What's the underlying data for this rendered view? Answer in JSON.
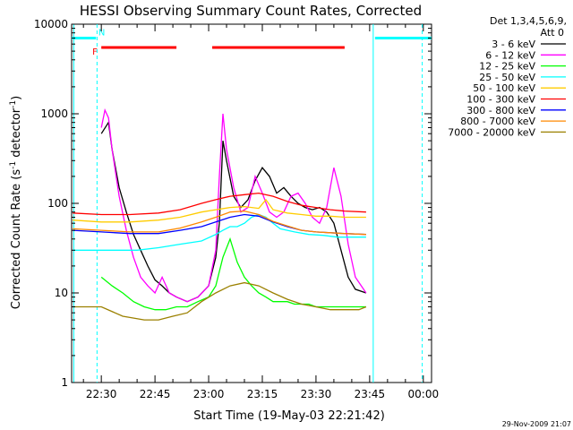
{
  "chart_data": {
    "type": "line",
    "title": "HESSI Observing Summary Count Rates, Corrected",
    "xlabel": "Start Time (19-May-03 22:21:42)",
    "ylabel_main": "Corrected Count Rate (s",
    "ylabel_sup1": "-1",
    "ylabel_mid": " detector",
    "ylabel_sup2": "-1",
    "ylabel_end": ")",
    "yscale": "log",
    "ylim": [
      1,
      10000
    ],
    "xlim_min": [
      21.7,
      122.3
    ],
    "x_ticks": [
      {
        "min": 30,
        "label": "22:30"
      },
      {
        "min": 45,
        "label": "22:45"
      },
      {
        "min": 60,
        "label": "23:00"
      },
      {
        "min": 75,
        "label": "23:15"
      },
      {
        "min": 90,
        "label": "23:30"
      },
      {
        "min": 105,
        "label": "23:45"
      },
      {
        "min": 120,
        "label": "00:00"
      }
    ],
    "y_ticks": [
      {
        "v": 1,
        "label": "1"
      },
      {
        "v": 10,
        "label": "10"
      },
      {
        "v": 100,
        "label": "100"
      },
      {
        "v": 1000,
        "label": "1000"
      },
      {
        "v": 10000,
        "label": "10000"
      }
    ],
    "legend_header1": "Det 1,3,4,5,6,9,",
    "legend_header2": "Att 0",
    "legend_position": "right",
    "series": [
      {
        "name": "3 - 6 keV",
        "color": "#000000",
        "x": [
          30,
          32,
          33,
          35,
          37,
          39,
          41,
          43,
          45,
          47,
          49,
          51,
          54,
          57,
          60,
          62,
          63,
          64,
          65,
          67,
          69,
          71,
          73,
          75,
          77,
          79,
          81,
          83,
          85,
          87,
          89,
          91,
          93,
          95,
          97,
          99,
          101,
          104
        ],
        "y": [
          600,
          800,
          400,
          150,
          80,
          45,
          30,
          20,
          14,
          12,
          10,
          9,
          8,
          9,
          12,
          25,
          60,
          500,
          300,
          120,
          90,
          110,
          180,
          250,
          200,
          130,
          150,
          120,
          100,
          90,
          85,
          90,
          80,
          60,
          30,
          15,
          11,
          10
        ]
      },
      {
        "name": "6 - 12 keV",
        "color": "#ff00ff",
        "x": [
          30,
          31,
          32,
          33,
          35,
          37,
          39,
          41,
          43,
          45,
          47,
          49,
          51,
          54,
          57,
          60,
          62,
          63,
          64,
          65,
          67,
          69,
          71,
          73,
          75,
          77,
          79,
          81,
          83,
          85,
          87,
          89,
          91,
          93,
          95,
          97,
          99,
          101,
          104
        ],
        "y": [
          700,
          1100,
          900,
          400,
          120,
          50,
          25,
          15,
          12,
          10,
          15,
          10,
          9,
          8,
          9,
          12,
          30,
          200,
          1000,
          400,
          150,
          80,
          90,
          200,
          130,
          80,
          70,
          80,
          120,
          130,
          100,
          70,
          60,
          90,
          250,
          120,
          35,
          15,
          10
        ]
      },
      {
        "name": "12 - 25 keV",
        "color": "#00ff00",
        "x": [
          30,
          33,
          36,
          39,
          42,
          45,
          48,
          51,
          54,
          57,
          60,
          62,
          64,
          66,
          68,
          70,
          72,
          74,
          76,
          78,
          80,
          82,
          84,
          86,
          88,
          90,
          92,
          94,
          96,
          98,
          100,
          102,
          104
        ],
        "y": [
          15,
          12,
          10,
          8,
          7,
          6.5,
          6.5,
          7,
          7,
          8,
          9,
          12,
          25,
          40,
          22,
          15,
          12,
          10,
          9,
          8,
          8,
          8,
          7.5,
          7.5,
          7.5,
          7,
          7,
          7,
          7,
          7,
          7,
          7,
          7
        ]
      },
      {
        "name": "25 - 50 keV",
        "color": "#00ffff",
        "x": [
          22,
          28,
          34,
          40,
          46,
          52,
          58,
          62,
          64,
          66,
          68,
          70,
          72,
          74,
          76,
          78,
          80,
          84,
          88,
          92,
          96,
          100,
          104
        ],
        "y": [
          30,
          30,
          30,
          30,
          32,
          35,
          38,
          45,
          50,
          55,
          55,
          60,
          70,
          75,
          70,
          60,
          52,
          48,
          45,
          44,
          42,
          42,
          42
        ]
      },
      {
        "name": "50 - 100 keV",
        "color": "#ffcc00",
        "x": [
          22,
          30,
          38,
          46,
          52,
          58,
          62,
          66,
          70,
          74,
          76,
          78,
          82,
          86,
          90,
          94,
          98,
          104
        ],
        "y": [
          65,
          62,
          62,
          65,
          70,
          80,
          85,
          90,
          92,
          88,
          110,
          85,
          78,
          75,
          72,
          72,
          70,
          70
        ]
      },
      {
        "name": "100 - 300 keV",
        "color": "#ff0000",
        "x": [
          22,
          30,
          38,
          46,
          52,
          58,
          62,
          66,
          70,
          74,
          78,
          82,
          86,
          90,
          94,
          98,
          104
        ],
        "y": [
          78,
          75,
          75,
          78,
          85,
          100,
          110,
          120,
          125,
          130,
          120,
          105,
          95,
          90,
          85,
          82,
          80
        ]
      },
      {
        "name": "300 - 800 keV",
        "color": "#0000ff",
        "x": [
          22,
          30,
          38,
          46,
          52,
          58,
          62,
          66,
          70,
          74,
          78,
          82,
          86,
          90,
          94,
          98,
          104
        ],
        "y": [
          50,
          48,
          46,
          46,
          50,
          55,
          62,
          70,
          75,
          72,
          62,
          55,
          50,
          48,
          47,
          46,
          45
        ]
      },
      {
        "name": "800 - 7000 keV",
        "color": "#ff8800",
        "x": [
          22,
          30,
          38,
          46,
          52,
          58,
          62,
          66,
          70,
          74,
          78,
          82,
          86,
          90,
          94,
          98,
          104
        ],
        "y": [
          52,
          50,
          48,
          48,
          53,
          62,
          70,
          80,
          82,
          75,
          63,
          56,
          50,
          48,
          47,
          46,
          45
        ]
      },
      {
        "name": "7000 - 20000 keV",
        "color": "#9b8000",
        "x": [
          22,
          30,
          36,
          42,
          46,
          50,
          54,
          58,
          62,
          66,
          70,
          74,
          78,
          82,
          86,
          90,
          94,
          98,
          102,
          104
        ],
        "y": [
          7,
          7,
          5.5,
          5,
          5,
          5.5,
          6,
          8,
          10,
          12,
          13,
          12,
          10,
          8.5,
          7.5,
          7,
          6.5,
          6.5,
          6.5,
          7
        ]
      }
    ],
    "saa_segments": [
      {
        "x1": 21.7,
        "x2": 28.5,
        "y": 7000,
        "color": "#00ffff"
      },
      {
        "x1": 106.5,
        "x2": 122.3,
        "y": 7000,
        "color": "#00ffff"
      }
    ],
    "flare_segments": [
      {
        "x1": 30,
        "x2": 51,
        "y": 5500,
        "color": "#ff0000"
      },
      {
        "x1": 61,
        "x2": 98,
        "y": 5500,
        "color": "#ff0000"
      }
    ],
    "flag_labels": [
      {
        "text": "F",
        "x": 28.2,
        "y": 5000,
        "color": "#ff0000"
      },
      {
        "text": "N",
        "x": 30.1,
        "y": 8200,
        "color": "#00ffff"
      }
    ],
    "vlines": [
      {
        "x": 22.3,
        "color": "#00ffff",
        "dash": false
      },
      {
        "x": 28.8,
        "color": "#00ffff",
        "dash": true
      },
      {
        "x": 106.0,
        "color": "#00ffff",
        "dash": false
      },
      {
        "x": 119.7,
        "color": "#00ffff",
        "dash": true
      }
    ],
    "timestamp": "29-Nov-2009 21:07"
  }
}
